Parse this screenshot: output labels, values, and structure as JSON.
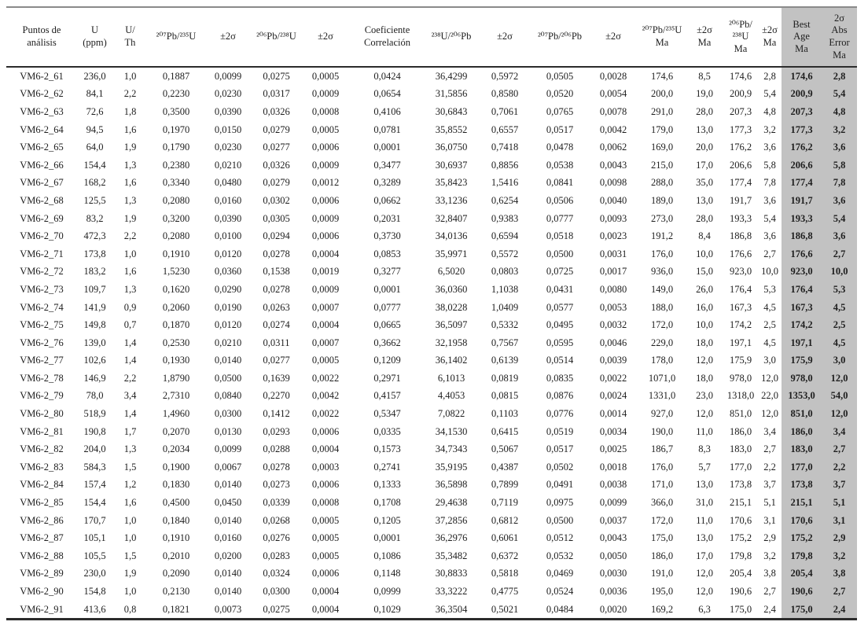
{
  "table": {
    "headers": [
      {
        "label": "Puntos de\nanálisis",
        "shaded": false
      },
      {
        "label": "U\n(ppm)",
        "shaded": false
      },
      {
        "label": "U/\nTh",
        "shaded": false
      },
      {
        "label": "²⁰⁷Pb/²³⁵U",
        "shaded": false
      },
      {
        "label": "±2σ",
        "shaded": false
      },
      {
        "label": "²⁰⁶Pb/²³⁸U",
        "shaded": false
      },
      {
        "label": "±2σ",
        "shaded": false
      },
      {
        "label": "Coeficiente\nCorrelación",
        "shaded": false
      },
      {
        "label": "²³⁸U/²⁰⁶Pb",
        "shaded": false
      },
      {
        "label": "±2σ",
        "shaded": false
      },
      {
        "label": "²⁰⁷Pb/²⁰⁶Pb",
        "shaded": false
      },
      {
        "label": "±2σ",
        "shaded": false
      },
      {
        "label": "²⁰⁷Pb/²³⁵U\nMa",
        "shaded": false
      },
      {
        "label": "±2σ\nMa",
        "shaded": false
      },
      {
        "label": "²⁰⁶Pb/²³⁸U\nMa",
        "shaded": false
      },
      {
        "label": "±2σ\nMa",
        "shaded": false
      },
      {
        "label": "Best\nAge\nMa",
        "shaded": true
      },
      {
        "label": "2σ\nAbs\nError\nMa",
        "shaded": true
      }
    ],
    "rows": [
      [
        "VM6-2_61",
        "236,0",
        "1,0",
        "0,1887",
        "0,0099",
        "0,0275",
        "0,0005",
        "0,0424",
        "36,4299",
        "0,5972",
        "0,0505",
        "0,0028",
        "174,6",
        "8,5",
        "174,6",
        "2,8",
        "174,6",
        "2,8"
      ],
      [
        "VM6-2_62",
        "84,1",
        "2,2",
        "0,2230",
        "0,0230",
        "0,0317",
        "0,0009",
        "0,0654",
        "31,5856",
        "0,8580",
        "0,0520",
        "0,0054",
        "200,0",
        "19,0",
        "200,9",
        "5,4",
        "200,9",
        "5,4"
      ],
      [
        "VM6-2_63",
        "72,6",
        "1,8",
        "0,3500",
        "0,0390",
        "0,0326",
        "0,0008",
        "0,4106",
        "30,6843",
        "0,7061",
        "0,0765",
        "0,0078",
        "291,0",
        "28,0",
        "207,3",
        "4,8",
        "207,3",
        "4,8"
      ],
      [
        "VM6-2_64",
        "94,5",
        "1,6",
        "0,1970",
        "0,0150",
        "0,0279",
        "0,0005",
        "0,0781",
        "35,8552",
        "0,6557",
        "0,0517",
        "0,0042",
        "179,0",
        "13,0",
        "177,3",
        "3,2",
        "177,3",
        "3,2"
      ],
      [
        "VM6-2_65",
        "64,0",
        "1,9",
        "0,1790",
        "0,0230",
        "0,0277",
        "0,0006",
        "0,0001",
        "36,0750",
        "0,7418",
        "0,0478",
        "0,0062",
        "169,0",
        "20,0",
        "176,2",
        "3,6",
        "176,2",
        "3,6"
      ],
      [
        "VM6-2_66",
        "154,4",
        "1,3",
        "0,2380",
        "0,0210",
        "0,0326",
        "0,0009",
        "0,3477",
        "30,6937",
        "0,8856",
        "0,0538",
        "0,0043",
        "215,0",
        "17,0",
        "206,6",
        "5,8",
        "206,6",
        "5,8"
      ],
      [
        "VM6-2_67",
        "168,2",
        "1,6",
        "0,3340",
        "0,0480",
        "0,0279",
        "0,0012",
        "0,3289",
        "35,8423",
        "1,5416",
        "0,0841",
        "0,0098",
        "288,0",
        "35,0",
        "177,4",
        "7,8",
        "177,4",
        "7,8"
      ],
      [
        "VM6-2_68",
        "125,5",
        "1,3",
        "0,2080",
        "0,0160",
        "0,0302",
        "0,0006",
        "0,0662",
        "33,1236",
        "0,6254",
        "0,0506",
        "0,0040",
        "189,0",
        "13,0",
        "191,7",
        "3,6",
        "191,7",
        "3,6"
      ],
      [
        "VM6-2_69",
        "83,2",
        "1,9",
        "0,3200",
        "0,0390",
        "0,0305",
        "0,0009",
        "0,2031",
        "32,8407",
        "0,9383",
        "0,0777",
        "0,0093",
        "273,0",
        "28,0",
        "193,3",
        "5,4",
        "193,3",
        "5,4"
      ],
      [
        "VM6-2_70",
        "472,3",
        "2,2",
        "0,2080",
        "0,0100",
        "0,0294",
        "0,0006",
        "0,3730",
        "34,0136",
        "0,6594",
        "0,0518",
        "0,0023",
        "191,2",
        "8,4",
        "186,8",
        "3,6",
        "186,8",
        "3,6"
      ],
      [
        "VM6-2_71",
        "173,8",
        "1,0",
        "0,1910",
        "0,0120",
        "0,0278",
        "0,0004",
        "0,0853",
        "35,9971",
        "0,5572",
        "0,0500",
        "0,0031",
        "176,0",
        "10,0",
        "176,6",
        "2,7",
        "176,6",
        "2,7"
      ],
      [
        "VM6-2_72",
        "183,2",
        "1,6",
        "1,5230",
        "0,0360",
        "0,1538",
        "0,0019",
        "0,3277",
        "6,5020",
        "0,0803",
        "0,0725",
        "0,0017",
        "936,0",
        "15,0",
        "923,0",
        "10,0",
        "923,0",
        "10,0"
      ],
      [
        "VM6-2_73",
        "109,7",
        "1,3",
        "0,1620",
        "0,0290",
        "0,0278",
        "0,0009",
        "0,0001",
        "36,0360",
        "1,1038",
        "0,0431",
        "0,0080",
        "149,0",
        "26,0",
        "176,4",
        "5,3",
        "176,4",
        "5,3"
      ],
      [
        "VM6-2_74",
        "141,9",
        "0,9",
        "0,2060",
        "0,0190",
        "0,0263",
        "0,0007",
        "0,0777",
        "38,0228",
        "1,0409",
        "0,0577",
        "0,0053",
        "188,0",
        "16,0",
        "167,3",
        "4,5",
        "167,3",
        "4,5"
      ],
      [
        "VM6-2_75",
        "149,8",
        "0,7",
        "0,1870",
        "0,0120",
        "0,0274",
        "0,0004",
        "0,0665",
        "36,5097",
        "0,5332",
        "0,0495",
        "0,0032",
        "172,0",
        "10,0",
        "174,2",
        "2,5",
        "174,2",
        "2,5"
      ],
      [
        "VM6-2_76",
        "139,0",
        "1,4",
        "0,2530",
        "0,0210",
        "0,0311",
        "0,0007",
        "0,3662",
        "32,1958",
        "0,7567",
        "0,0595",
        "0,0046",
        "229,0",
        "18,0",
        "197,1",
        "4,5",
        "197,1",
        "4,5"
      ],
      [
        "VM6-2_77",
        "102,6",
        "1,4",
        "0,1930",
        "0,0140",
        "0,0277",
        "0,0005",
        "0,1209",
        "36,1402",
        "0,6139",
        "0,0514",
        "0,0039",
        "178,0",
        "12,0",
        "175,9",
        "3,0",
        "175,9",
        "3,0"
      ],
      [
        "VM6-2_78",
        "146,9",
        "2,2",
        "1,8790",
        "0,0500",
        "0,1639",
        "0,0022",
        "0,2971",
        "6,1013",
        "0,0819",
        "0,0835",
        "0,0022",
        "1071,0",
        "18,0",
        "978,0",
        "12,0",
        "978,0",
        "12,0"
      ],
      [
        "VM6-2_79",
        "78,0",
        "3,4",
        "2,7310",
        "0,0840",
        "0,2270",
        "0,0042",
        "0,4157",
        "4,4053",
        "0,0815",
        "0,0876",
        "0,0024",
        "1331,0",
        "23,0",
        "1318,0",
        "22,0",
        "1353,0",
        "54,0"
      ],
      [
        "VM6-2_80",
        "518,9",
        "1,4",
        "1,4960",
        "0,0300",
        "0,1412",
        "0,0022",
        "0,5347",
        "7,0822",
        "0,1103",
        "0,0776",
        "0,0014",
        "927,0",
        "12,0",
        "851,0",
        "12,0",
        "851,0",
        "12,0"
      ],
      [
        "VM6-2_81",
        "190,8",
        "1,7",
        "0,2070",
        "0,0130",
        "0,0293",
        "0,0006",
        "0,0335",
        "34,1530",
        "0,6415",
        "0,0519",
        "0,0034",
        "190,0",
        "11,0",
        "186,0",
        "3,4",
        "186,0",
        "3,4"
      ],
      [
        "VM6-2_82",
        "204,0",
        "1,3",
        "0,2034",
        "0,0099",
        "0,0288",
        "0,0004",
        "0,1573",
        "34,7343",
        "0,5067",
        "0,0517",
        "0,0025",
        "186,7",
        "8,3",
        "183,0",
        "2,7",
        "183,0",
        "2,7"
      ],
      [
        "VM6-2_83",
        "584,3",
        "1,5",
        "0,1900",
        "0,0067",
        "0,0278",
        "0,0003",
        "0,2741",
        "35,9195",
        "0,4387",
        "0,0502",
        "0,0018",
        "176,0",
        "5,7",
        "177,0",
        "2,2",
        "177,0",
        "2,2"
      ],
      [
        "VM6-2_84",
        "157,4",
        "1,2",
        "0,1830",
        "0,0140",
        "0,0273",
        "0,0006",
        "0,1333",
        "36,5898",
        "0,7899",
        "0,0491",
        "0,0038",
        "171,0",
        "13,0",
        "173,8",
        "3,7",
        "173,8",
        "3,7"
      ],
      [
        "VM6-2_85",
        "154,4",
        "1,6",
        "0,4500",
        "0,0450",
        "0,0339",
        "0,0008",
        "0,1708",
        "29,4638",
        "0,7119",
        "0,0975",
        "0,0099",
        "366,0",
        "31,0",
        "215,1",
        "5,1",
        "215,1",
        "5,1"
      ],
      [
        "VM6-2_86",
        "170,7",
        "1,0",
        "0,1840",
        "0,0140",
        "0,0268",
        "0,0005",
        "0,1205",
        "37,2856",
        "0,6812",
        "0,0500",
        "0,0037",
        "172,0",
        "11,0",
        "170,6",
        "3,1",
        "170,6",
        "3,1"
      ],
      [
        "VM6-2_87",
        "105,1",
        "1,0",
        "0,1910",
        "0,0160",
        "0,0276",
        "0,0005",
        "0,0001",
        "36,2976",
        "0,6061",
        "0,0512",
        "0,0043",
        "175,0",
        "13,0",
        "175,2",
        "2,9",
        "175,2",
        "2,9"
      ],
      [
        "VM6-2_88",
        "105,5",
        "1,5",
        "0,2010",
        "0,0200",
        "0,0283",
        "0,0005",
        "0,1086",
        "35,3482",
        "0,6372",
        "0,0532",
        "0,0050",
        "186,0",
        "17,0",
        "179,8",
        "3,2",
        "179,8",
        "3,2"
      ],
      [
        "VM6-2_89",
        "230,0",
        "1,9",
        "0,2090",
        "0,0140",
        "0,0324",
        "0,0006",
        "0,1148",
        "30,8833",
        "0,5818",
        "0,0469",
        "0,0030",
        "191,0",
        "12,0",
        "205,4",
        "3,8",
        "205,4",
        "3,8"
      ],
      [
        "VM6-2_90",
        "154,8",
        "1,0",
        "0,2130",
        "0,0140",
        "0,0300",
        "0,0004",
        "0,0999",
        "33,3222",
        "0,4775",
        "0,0524",
        "0,0036",
        "195,0",
        "12,0",
        "190,6",
        "2,7",
        "190,6",
        "2,7"
      ],
      [
        "VM6-2_91",
        "413,6",
        "0,8",
        "0,1821",
        "0,0073",
        "0,0275",
        "0,0004",
        "0,1029",
        "36,3504",
        "0,5021",
        "0,0484",
        "0,0020",
        "169,2",
        "6,3",
        "175,0",
        "2,4",
        "175,0",
        "2,4"
      ]
    ]
  },
  "colors": {
    "shaded_bg": "#c2c2c2",
    "rule_dark": "#2b2b2b",
    "rule_top": "#8a8a8a",
    "text": "#1e1e1e"
  }
}
